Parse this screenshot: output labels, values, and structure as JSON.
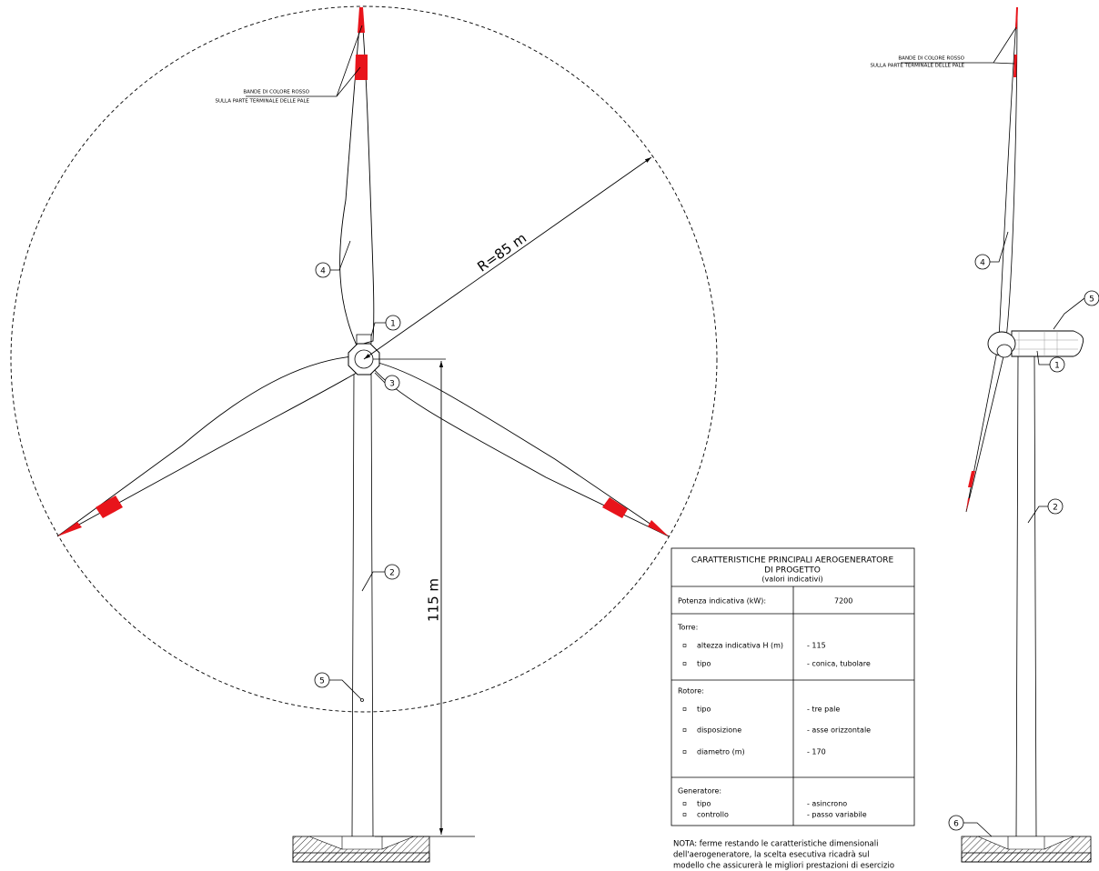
{
  "front_view": {
    "band_note": [
      "BANDE DI COLORE ROSSO",
      "SULLA PARTE TERMINALE DELLE PALE"
    ],
    "radius_label": "R=85 m",
    "height_label": "115 m",
    "callouts": [
      "1",
      "2",
      "3",
      "4",
      "5"
    ]
  },
  "side_view": {
    "band_note": [
      "BANDE DI COLORE ROSSO",
      "SULLA PARTE TERMINALE DELLE PALE"
    ],
    "callouts": [
      "1",
      "2",
      "4",
      "5",
      "6"
    ]
  },
  "table": {
    "title": [
      "CARATTERISTICHE PRINCIPALI AEROGENERATORE",
      "DI PROGETTO",
      "(valori indicativi)"
    ],
    "power": {
      "label": "Potenza indicativa (kW):",
      "value": "7200"
    },
    "sections": [
      {
        "heading": "Torre:",
        "items": [
          {
            "label": "altezza indicativa H (m)",
            "value": "- 115"
          },
          {
            "label": "tipo",
            "value": "- conica, tubolare"
          }
        ]
      },
      {
        "heading": "Rotore:",
        "items": [
          {
            "label": "tipo",
            "value": "- tre pale"
          },
          {
            "label": "disposizione",
            "value": "- asse orizzontale"
          },
          {
            "label": "diametro (m)",
            "value": "- 170"
          }
        ]
      },
      {
        "heading": "Generatore:",
        "items": [
          {
            "label": "tipo",
            "value": "- asincrono"
          },
          {
            "label": "controllo",
            "value": "- passo variabile"
          }
        ]
      }
    ]
  },
  "note": [
    "NOTA: ferme restando le caratteristiche dimensionali",
    "dell'aerogeneratore, la scelta esecutiva ricadrà sul",
    "modello che assicurerà le migliori prestazioni di esercizio"
  ]
}
